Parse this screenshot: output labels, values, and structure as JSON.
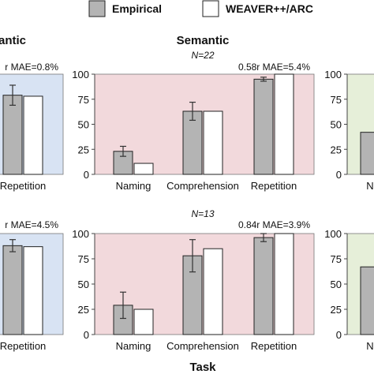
{
  "legend": [
    {
      "label": "Empirical",
      "color": "#b4b4b4"
    },
    {
      "label": "WEAVER++/ARC",
      "color": "#ffffff"
    }
  ],
  "row_title_left": "antic",
  "column_title": "Semantic",
  "xlabel": "Task",
  "colors": {
    "semantic_bg": "#f2d9dc",
    "left_bg": "#d8e3f3",
    "right_bg": "#e6efd9",
    "empirical": "#b4b4b4",
    "model": "#ffffff",
    "edge": "#222222"
  },
  "chart_data": [
    {
      "type": "bar",
      "panel": "top-left-partial",
      "categories": [
        "Repetition"
      ],
      "series": [
        {
          "name": "Empirical",
          "values": [
            79
          ],
          "error": [
            10
          ]
        },
        {
          "name": "WEAVER++/ARC",
          "values": [
            78
          ]
        }
      ],
      "stats_label": "r  MAE=0.8%",
      "ylim": [
        0,
        100
      ]
    },
    {
      "type": "bar",
      "panel": "top-center",
      "title": "N=22",
      "categories": [
        "Naming",
        "Comprehension",
        "Repetition"
      ],
      "series": [
        {
          "name": "Empirical",
          "values": [
            23,
            63,
            95
          ],
          "error": [
            5,
            9,
            2
          ]
        },
        {
          "name": "WEAVER++/ARC",
          "values": [
            11,
            63,
            100
          ]
        }
      ],
      "stats_label": "0.58r  MAE=5.4%",
      "yticks": [
        0,
        25,
        50,
        75,
        100
      ],
      "ylim": [
        0,
        100
      ]
    },
    {
      "type": "bar",
      "panel": "top-right-partial",
      "categories": [
        "N"
      ],
      "series": [
        {
          "name": "Empirical",
          "values": [
            42
          ]
        }
      ],
      "yticks": [
        0,
        25,
        50,
        75,
        100
      ],
      "ylim": [
        0,
        100
      ]
    },
    {
      "type": "bar",
      "panel": "bottom-left-partial",
      "categories": [
        "Repetition"
      ],
      "series": [
        {
          "name": "Empirical",
          "values": [
            88
          ],
          "error": [
            6
          ]
        },
        {
          "name": "WEAVER++/ARC",
          "values": [
            87
          ]
        }
      ],
      "stats_label": "r  MAE=4.5%",
      "ylim": [
        0,
        100
      ]
    },
    {
      "type": "bar",
      "panel": "bottom-center",
      "title": "N=13",
      "categories": [
        "Naming",
        "Comprehension",
        "Repetition"
      ],
      "series": [
        {
          "name": "Empirical",
          "values": [
            29,
            78,
            96
          ],
          "error": [
            13,
            16,
            4
          ]
        },
        {
          "name": "WEAVER++/ARC",
          "values": [
            25,
            85,
            100
          ]
        }
      ],
      "stats_label": "0.84r  MAE=3.9%",
      "yticks": [
        0,
        25,
        50,
        75,
        100
      ],
      "ylim": [
        0,
        100
      ]
    },
    {
      "type": "bar",
      "panel": "bottom-right-partial",
      "categories": [
        "N"
      ],
      "series": [
        {
          "name": "Empirical",
          "values": [
            67
          ]
        }
      ],
      "yticks": [
        0,
        25,
        50,
        75,
        100
      ],
      "ylim": [
        0,
        100
      ]
    }
  ]
}
